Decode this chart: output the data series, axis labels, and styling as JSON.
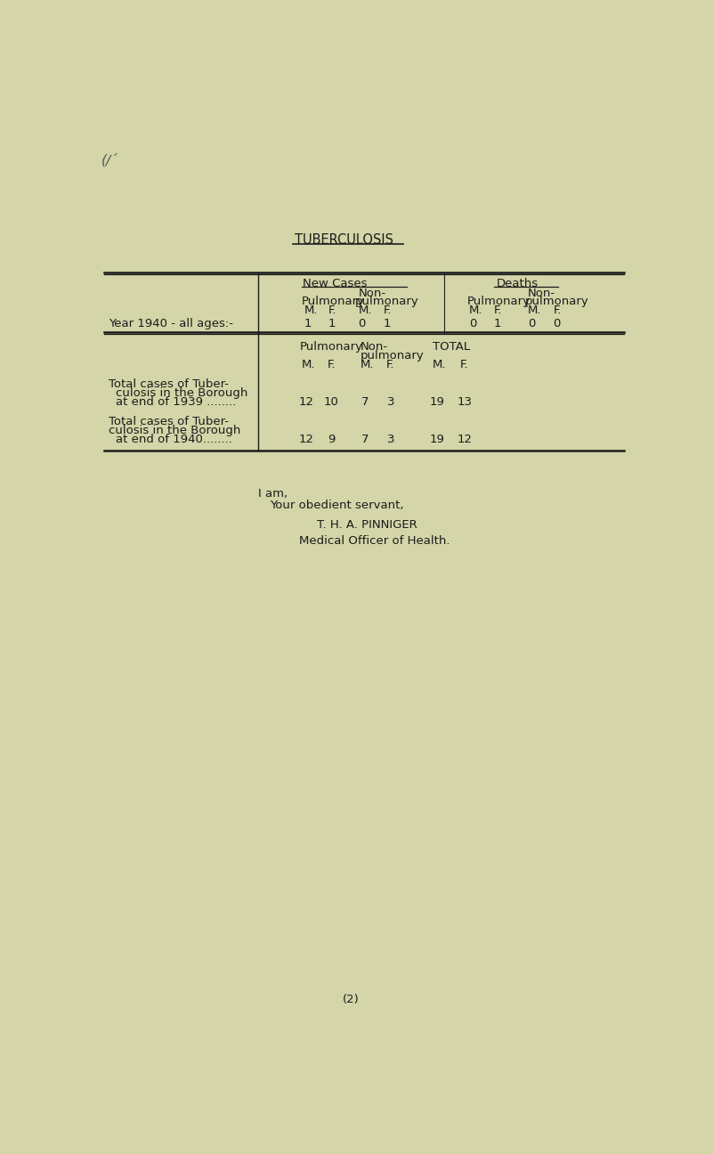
{
  "bg_color": "#d4d5a8",
  "text_color": "#1c1c1c",
  "title": "TUBERCULOSIS",
  "font_family": "Courier New",
  "page_number": "(2)",
  "scratch_mark": "(∕´",
  "table_top": {
    "header_new_cases": "New Cases",
    "header_deaths": "Deaths",
    "non_label": "Non-",
    "col_labels": [
      "Pulmonary",
      "pulmonary",
      "Pulmonary",
      "pulmonary"
    ],
    "mf_labels": [
      "M.",
      "F.",
      "M.",
      "F.",
      "M.",
      "F.",
      "M.",
      "F."
    ],
    "year_label": "Year 1940 - all ages:-",
    "year_data": [
      "1",
      "1",
      "0",
      "1",
      "0",
      "1",
      "0",
      "0"
    ]
  },
  "table_bottom": {
    "col1": "Pulmonary",
    "col2a": "Non-",
    "col2b": "pulmonary",
    "col3": "TOTAL",
    "mf": [
      "M.",
      "F.",
      "M.",
      "F.",
      "M.",
      "F."
    ],
    "row1_lines": [
      "Total cases of Tuber-",
      "culosis in the Borough",
      "at end of 1939 ........"
    ],
    "row1_data": [
      "12",
      "10",
      "7",
      "3",
      "19",
      "13"
    ],
    "row2_lines": [
      "Total cases of Tuber-",
      "øulosis in the Borough",
      "at end of 1940········"
    ],
    "row2_data": [
      "12",
      "9",
      "7",
      "3",
      "19",
      "12"
    ]
  },
  "closing": {
    "line1": "I am,",
    "line2": "    Your obedient servant,",
    "line3": "        T. H. A. PINNIGER",
    "line4": "        Medical Officer of Health."
  }
}
